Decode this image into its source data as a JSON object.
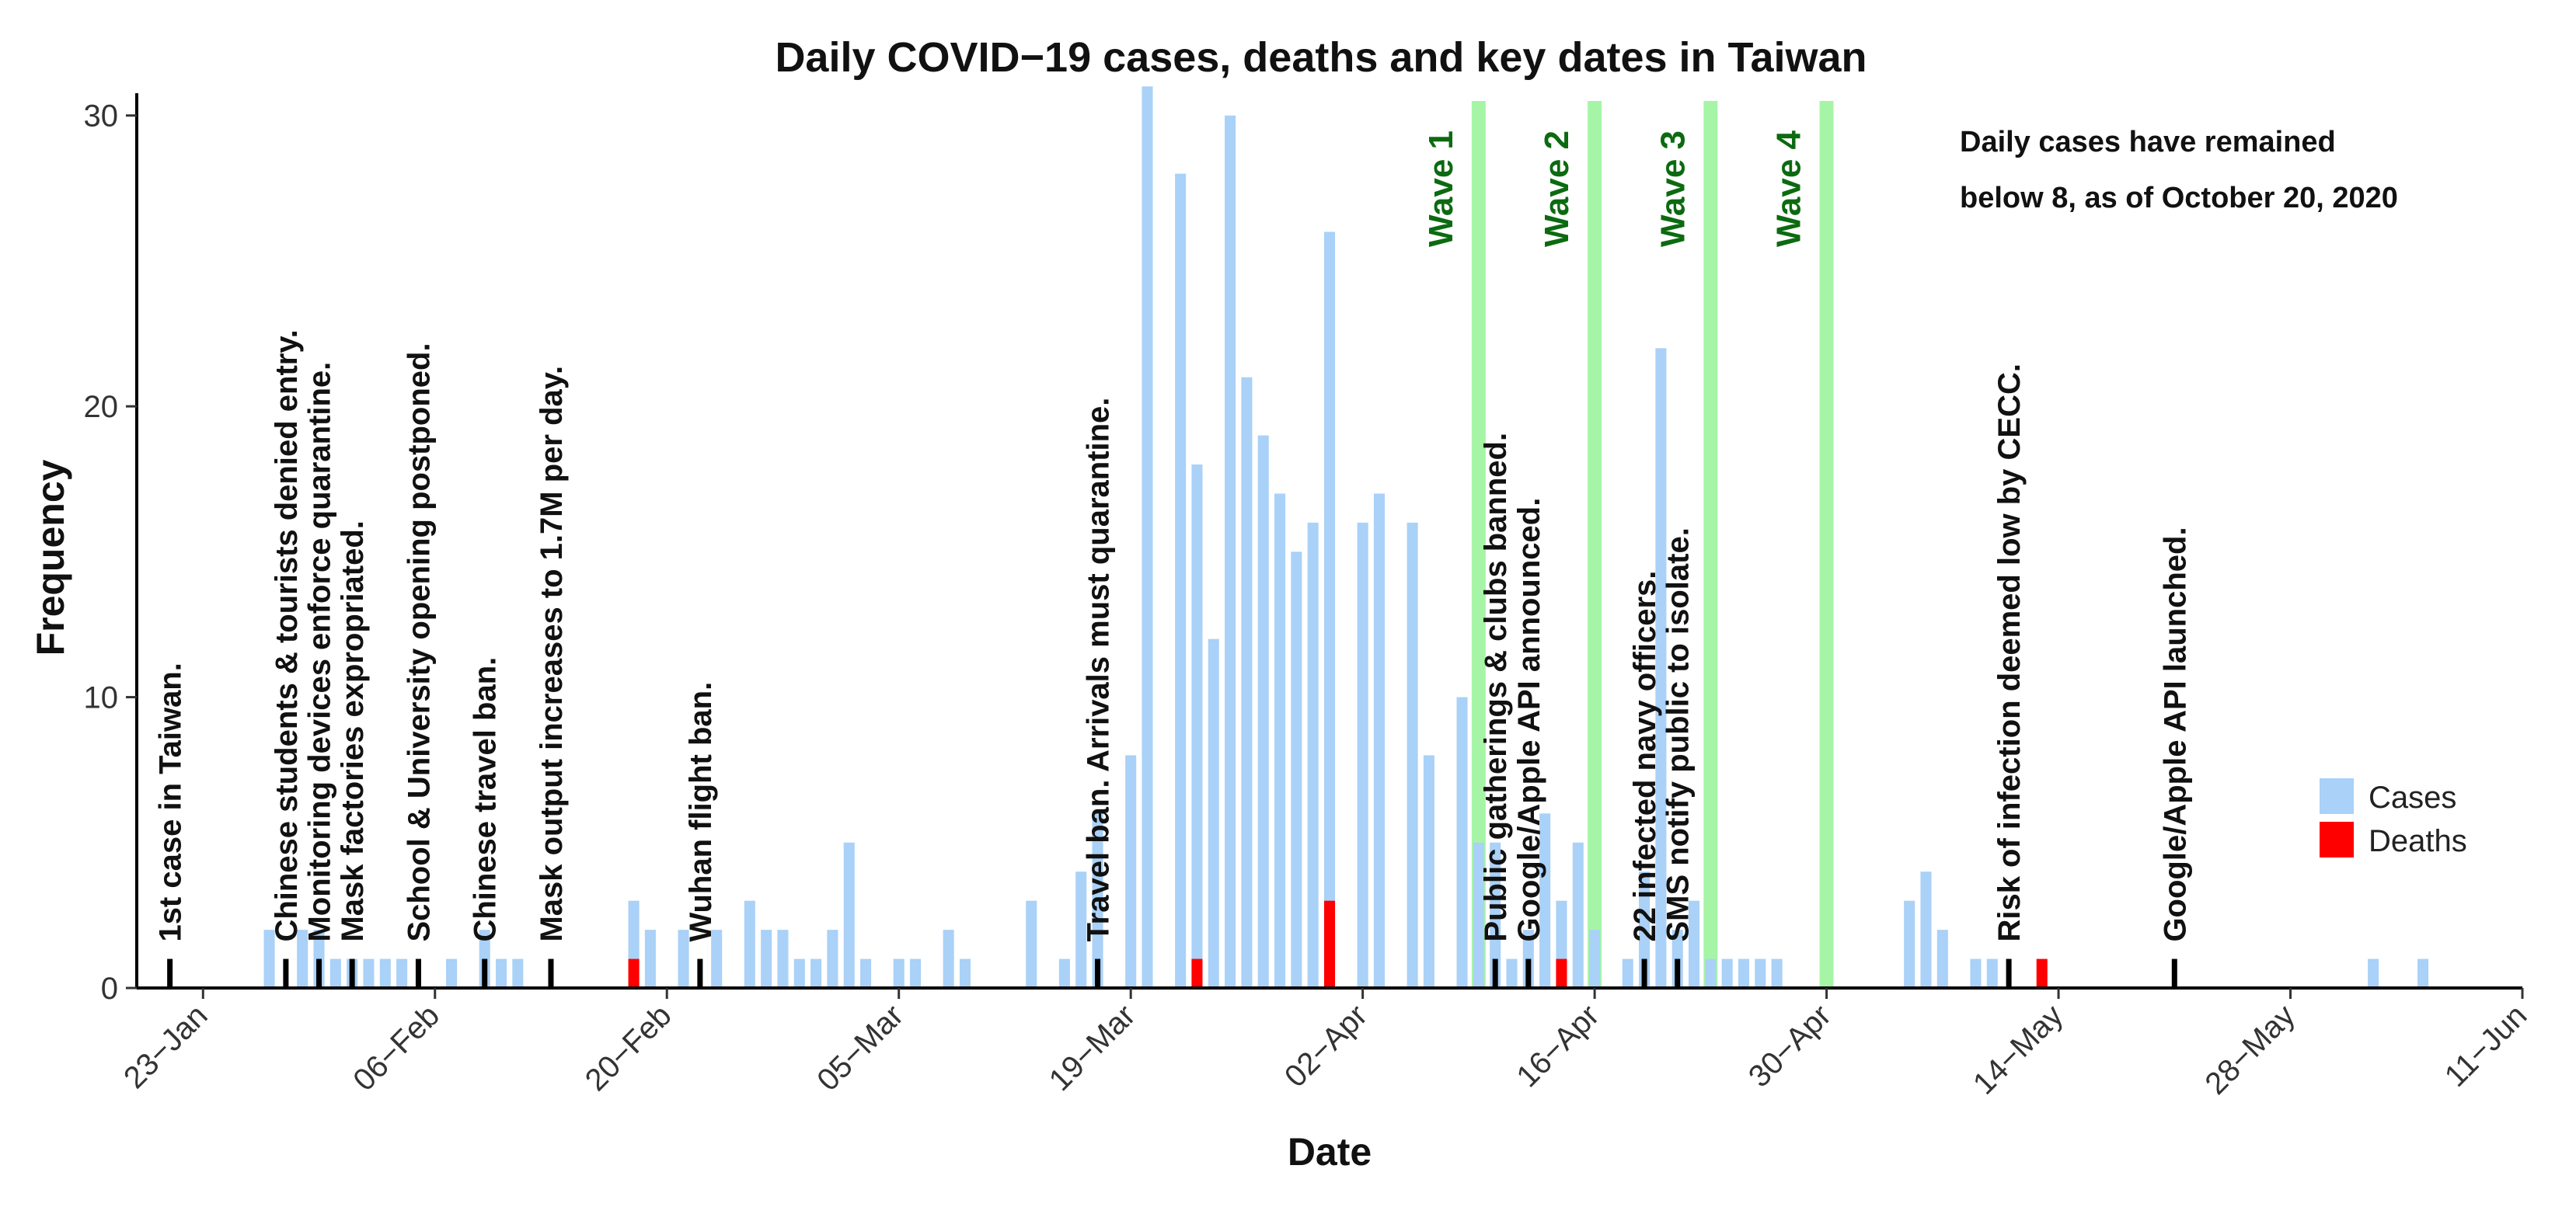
{
  "chart_data": {
    "type": "bar",
    "title": "Daily COVID−19 cases, deaths and key dates in Taiwan",
    "xlabel": "Date",
    "ylabel": "Frequency",
    "ylim": [
      0,
      30.5
    ],
    "yticks": [
      0,
      10,
      20,
      30
    ],
    "x_start": "21-Jan",
    "x_end": "11-Jun",
    "xticks": [
      {
        "label": "23−Jan",
        "day": 2
      },
      {
        "label": "06−Feb",
        "day": 16
      },
      {
        "label": "20−Feb",
        "day": 30
      },
      {
        "label": "05−Mar",
        "day": 44
      },
      {
        "label": "19−Mar",
        "day": 58
      },
      {
        "label": "02−Apr",
        "day": 72
      },
      {
        "label": "16−Apr",
        "day": 86
      },
      {
        "label": "30−Apr",
        "day": 100
      },
      {
        "label": "14−May",
        "day": 114
      },
      {
        "label": "28−May",
        "day": 128
      },
      {
        "label": "11−Jun",
        "day": 142
      }
    ],
    "series": [
      {
        "name": "Cases",
        "color": "#aad1f7",
        "points": [
          [
            6,
            2
          ],
          [
            8,
            2
          ],
          [
            9,
            2
          ],
          [
            10,
            1
          ],
          [
            11,
            1
          ],
          [
            12,
            1
          ],
          [
            13,
            1
          ],
          [
            14,
            1
          ],
          [
            17,
            1
          ],
          [
            19,
            2
          ],
          [
            20,
            1
          ],
          [
            21,
            1
          ],
          [
            28,
            3
          ],
          [
            29,
            2
          ],
          [
            31,
            2
          ],
          [
            33,
            2
          ],
          [
            35,
            3
          ],
          [
            36,
            2
          ],
          [
            37,
            2
          ],
          [
            38,
            1
          ],
          [
            39,
            1
          ],
          [
            40,
            2
          ],
          [
            41,
            5
          ],
          [
            42,
            1
          ],
          [
            44,
            1
          ],
          [
            45,
            1
          ],
          [
            47,
            2
          ],
          [
            48,
            1
          ],
          [
            52,
            3
          ],
          [
            54,
            1
          ],
          [
            55,
            4
          ],
          [
            56,
            6
          ],
          [
            58,
            8
          ],
          [
            59,
            31
          ],
          [
            61,
            28
          ],
          [
            62,
            18
          ],
          [
            63,
            12
          ],
          [
            64,
            30
          ],
          [
            65,
            21
          ],
          [
            66,
            19
          ],
          [
            67,
            17
          ],
          [
            68,
            15
          ],
          [
            69,
            16
          ],
          [
            70,
            26
          ],
          [
            72,
            16
          ],
          [
            73,
            17
          ],
          [
            75,
            16
          ],
          [
            76,
            8
          ],
          [
            78,
            10
          ],
          [
            79,
            5
          ],
          [
            80,
            5
          ],
          [
            81,
            1
          ],
          [
            82,
            2
          ],
          [
            83,
            6
          ],
          [
            84,
            3
          ],
          [
            85,
            5
          ],
          [
            86,
            2
          ],
          [
            88,
            1
          ],
          [
            89,
            4
          ],
          [
            90,
            22
          ],
          [
            91,
            2
          ],
          [
            92,
            3
          ],
          [
            93,
            1
          ],
          [
            94,
            1
          ],
          [
            95,
            1
          ],
          [
            96,
            1
          ],
          [
            97,
            1
          ],
          [
            105,
            3
          ],
          [
            106,
            4
          ],
          [
            107,
            2
          ],
          [
            109,
            1
          ],
          [
            110,
            1
          ],
          [
            133,
            1
          ],
          [
            136,
            1
          ]
        ]
      },
      {
        "name": "Deaths",
        "color": "#ff0000",
        "points": [
          [
            28,
            1
          ],
          [
            62,
            1
          ],
          [
            70,
            3
          ],
          [
            84,
            1
          ],
          [
            113,
            1
          ]
        ]
      }
    ],
    "events": [
      {
        "day": 0,
        "label": "1st case in Taiwan.",
        "top": 10.7
      },
      {
        "day": 7,
        "label": "Chinese students & tourists denied entry.",
        "top": 28.2
      },
      {
        "day": 9,
        "label": "Monitoring devices enforce quarantine.",
        "top": 27.4
      },
      {
        "day": 11,
        "label": "Mask factories expropriated.",
        "top": 26.5
      },
      {
        "day": 15,
        "label": "School & University opening postponed.",
        "top": 27.5
      },
      {
        "day": 19,
        "label": "Chinese travel ban.",
        "top": 19.0
      },
      {
        "day": 23,
        "label": "Mask output increases to 1.7M per day.",
        "top": 27.0
      },
      {
        "day": 32,
        "label": "Wuhan flight ban.",
        "top": 12.3
      },
      {
        "day": 56,
        "label": "Travel ban. Arrivals must quarantine.",
        "top": 25.0
      },
      {
        "day": 80,
        "label": "Public gatherings & clubs banned.",
        "top": 23.3
      },
      {
        "day": 82,
        "label": "Google/Apple API announced.",
        "top": 19.8
      },
      {
        "day": 89,
        "label": "22 infected navy officers.",
        "top": 17.4
      },
      {
        "day": 91,
        "label": "SMS notify public to isolate.",
        "top": 16.3
      },
      {
        "day": 111,
        "label": "Risk of infection deemed low by CECC.",
        "top": 26.2
      },
      {
        "day": 121,
        "label": "Google/Apple API launched.",
        "top": 19.6
      }
    ],
    "waves": [
      {
        "day": 79,
        "label": "Wave 1"
      },
      {
        "day": 86,
        "label": "Wave 2"
      },
      {
        "day": 93,
        "label": "Wave 3"
      },
      {
        "day": 100,
        "label": "Wave 4"
      }
    ],
    "annotation": [
      "Daily cases have remained",
      "below 8, as of October 20, 2020"
    ],
    "legend": {
      "position": "right",
      "items": [
        {
          "name": "Cases",
          "color": "#aad1f7"
        },
        {
          "name": "Deaths",
          "color": "#ff0000"
        }
      ]
    },
    "event_marker_color": "#000000",
    "wave_color": "#a6f5a6"
  }
}
